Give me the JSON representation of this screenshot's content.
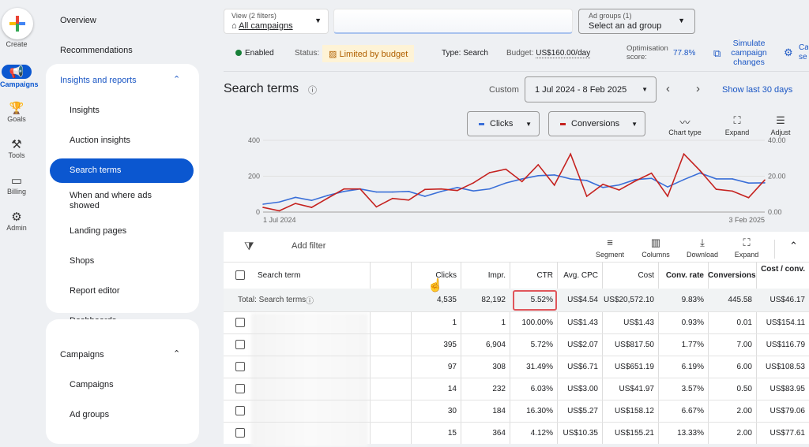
{
  "rail": {
    "create": "Create",
    "items": [
      {
        "label": "Campaigns",
        "icon": "megaphone-icon"
      },
      {
        "label": "Goals",
        "icon": "trophy-icon"
      },
      {
        "label": "Tools",
        "icon": "tools-icon"
      },
      {
        "label": "Billing",
        "icon": "credit-card-icon"
      },
      {
        "label": "Admin",
        "icon": "gear-icon"
      }
    ]
  },
  "nav": {
    "overview": "Overview",
    "recommendations": "Recommendations",
    "insights_group": "Insights and reports",
    "insights_items": [
      "Insights",
      "Auction insights",
      "Search terms",
      "When and where ads showed",
      "Landing pages",
      "Shops",
      "Report editor",
      "Dashboards"
    ],
    "campaigns_group": "Campaigns",
    "campaigns_items": [
      "Campaigns",
      "Ad groups"
    ]
  },
  "filters": {
    "view_label": "View (2 filters)",
    "view_value": "All campaigns",
    "adgroups_label": "Ad groups (1)",
    "adgroups_value": "Select an ad group"
  },
  "status": {
    "enabled": "Enabled",
    "status_label": "Status:",
    "status_value": "Limited by budget",
    "type": "Type: Search",
    "budget_label": "Budget:",
    "budget_value": "US$160.00/day",
    "opt_label": "Optimisation score:",
    "opt_value": "77.8%",
    "simulate": "Simulate campaign changes",
    "settings_partial": "Ca se"
  },
  "page": {
    "title": "Search terms",
    "date_label": "Custom",
    "date_range": "1 Jul 2024 - 8 Feb 2025",
    "show_last": "Show last 30 days"
  },
  "chart_controls": {
    "metric1": "Clicks",
    "metric2": "Conversions",
    "chart_type": "Chart type",
    "expand": "Expand",
    "adjust": "Adjust"
  },
  "colors": {
    "clicks": "#3a6fd8",
    "conversions": "#c5221f",
    "accent": "#0b57d0"
  },
  "chart_data": {
    "type": "line",
    "x_start": "1 Jul 2024",
    "x_end": "3 Feb 2025",
    "x_tick_labels": [
      "1 Jul 2024",
      "3 Feb 2025"
    ],
    "left_axis": {
      "ticks": [
        "0",
        "200",
        "400"
      ],
      "ylim": [
        0,
        400
      ]
    },
    "right_axis": {
      "ticks": [
        "0.00",
        "20.00",
        "40.00"
      ],
      "ylim": [
        0,
        40
      ]
    },
    "grid": true,
    "series": [
      {
        "name": "Clicks",
        "axis": "left",
        "values": [
          44,
          56,
          82,
          65,
          93,
          115,
          129,
          112,
          112,
          115,
          88,
          115,
          137,
          118,
          129,
          162,
          185,
          203,
          207,
          185,
          176,
          137,
          151,
          181,
          188,
          140,
          181,
          218,
          185,
          185,
          162,
          163
        ]
      },
      {
        "name": "Conversions",
        "axis": "right",
        "values": [
          2.6,
          0.7,
          4.8,
          2.6,
          7.8,
          12.9,
          12.9,
          2.9,
          7.6,
          6.7,
          12.6,
          12.9,
          12,
          16.3,
          22,
          23.9,
          17,
          26.4,
          15,
          32.4,
          8.8,
          15.5,
          12.3,
          17.3,
          21.7,
          8.8,
          32.4,
          23.1,
          12.7,
          11.7,
          8,
          17.9
        ]
      }
    ]
  },
  "toolbar": {
    "add_filter": "Add filter",
    "segment": "Segment",
    "columns": "Columns",
    "download": "Download",
    "expand": "Expand"
  },
  "table": {
    "headers": [
      "Search term",
      "Clicks",
      "Impr.",
      "CTR",
      "Avg. CPC",
      "Cost",
      "Conv. rate",
      "Conversions",
      "Cost / conv."
    ],
    "total": {
      "label": "Total: Search terms",
      "values": [
        "4,535",
        "82,192",
        "5.52%",
        "US$4.54",
        "US$20,572.10",
        "9.83%",
        "445.58",
        "US$46.17"
      ]
    },
    "rows": [
      [
        "1",
        "1",
        "100.00%",
        "US$1.43",
        "US$1.43",
        "0.93%",
        "0.01",
        "US$154.11"
      ],
      [
        "395",
        "6,904",
        "5.72%",
        "US$2.07",
        "US$817.50",
        "1.77%",
        "7.00",
        "US$116.79"
      ],
      [
        "97",
        "308",
        "31.49%",
        "US$6.71",
        "US$651.19",
        "6.19%",
        "6.00",
        "US$108.53"
      ],
      [
        "14",
        "232",
        "6.03%",
        "US$3.00",
        "US$41.97",
        "3.57%",
        "0.50",
        "US$83.95"
      ],
      [
        "30",
        "184",
        "16.30%",
        "US$5.27",
        "US$158.12",
        "6.67%",
        "2.00",
        "US$79.06"
      ],
      [
        "15",
        "364",
        "4.12%",
        "US$10.35",
        "US$155.21",
        "13.33%",
        "2.00",
        "US$77.61"
      ]
    ]
  }
}
